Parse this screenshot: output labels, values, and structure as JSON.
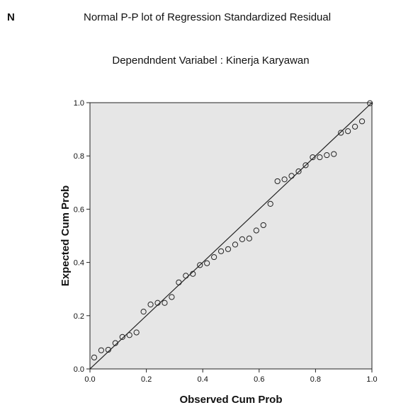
{
  "header": {
    "corner_mark": "N",
    "title": "Normal P-P lot of Regression Standardized Residual",
    "subtitle": "Dependndent Variabel : Kinerja Karyawan"
  },
  "colors": {
    "plot_background": "#e6e6e6",
    "frame": "#222222",
    "reference_line": "#222222",
    "marker_stroke": "#222222"
  },
  "chart_data": {
    "type": "scatter",
    "title": "Normal P-P lot of Regression Standardized Residual",
    "subtitle": "Dependndent Variabel : Kinerja Karyawan",
    "xlabel": "Observed Cum Prob",
    "ylabel": "Expected Cum Prob",
    "xlim": [
      0.0,
      1.0
    ],
    "ylim": [
      0.0,
      1.0
    ],
    "x_ticks": [
      "0.0",
      "0.2",
      "0.4",
      "0.6",
      "0.8",
      "1.0"
    ],
    "y_ticks": [
      "0.0",
      "0.2",
      "0.4",
      "0.6",
      "0.8",
      "1.0"
    ],
    "reference_line": {
      "from": [
        0.0,
        0.0
      ],
      "to": [
        1.0,
        1.0
      ]
    },
    "grid": false,
    "marker": "open-circle",
    "points": [
      {
        "x": 0.015,
        "y": 0.043
      },
      {
        "x": 0.04,
        "y": 0.07
      },
      {
        "x": 0.065,
        "y": 0.072
      },
      {
        "x": 0.09,
        "y": 0.097
      },
      {
        "x": 0.115,
        "y": 0.12
      },
      {
        "x": 0.14,
        "y": 0.127
      },
      {
        "x": 0.165,
        "y": 0.137
      },
      {
        "x": 0.19,
        "y": 0.215
      },
      {
        "x": 0.215,
        "y": 0.242
      },
      {
        "x": 0.24,
        "y": 0.248
      },
      {
        "x": 0.265,
        "y": 0.248
      },
      {
        "x": 0.29,
        "y": 0.27
      },
      {
        "x": 0.315,
        "y": 0.325
      },
      {
        "x": 0.34,
        "y": 0.35
      },
      {
        "x": 0.365,
        "y": 0.357
      },
      {
        "x": 0.39,
        "y": 0.39
      },
      {
        "x": 0.415,
        "y": 0.397
      },
      {
        "x": 0.44,
        "y": 0.42
      },
      {
        "x": 0.465,
        "y": 0.442
      },
      {
        "x": 0.49,
        "y": 0.45
      },
      {
        "x": 0.515,
        "y": 0.467
      },
      {
        "x": 0.54,
        "y": 0.487
      },
      {
        "x": 0.565,
        "y": 0.49
      },
      {
        "x": 0.59,
        "y": 0.52
      },
      {
        "x": 0.615,
        "y": 0.54
      },
      {
        "x": 0.64,
        "y": 0.62
      },
      {
        "x": 0.665,
        "y": 0.705
      },
      {
        "x": 0.69,
        "y": 0.712
      },
      {
        "x": 0.715,
        "y": 0.725
      },
      {
        "x": 0.74,
        "y": 0.742
      },
      {
        "x": 0.765,
        "y": 0.765
      },
      {
        "x": 0.79,
        "y": 0.795
      },
      {
        "x": 0.815,
        "y": 0.795
      },
      {
        "x": 0.84,
        "y": 0.803
      },
      {
        "x": 0.865,
        "y": 0.807
      },
      {
        "x": 0.89,
        "y": 0.887
      },
      {
        "x": 0.915,
        "y": 0.893
      },
      {
        "x": 0.94,
        "y": 0.91
      },
      {
        "x": 0.965,
        "y": 0.93
      },
      {
        "x": 0.993,
        "y": 0.998
      }
    ]
  }
}
